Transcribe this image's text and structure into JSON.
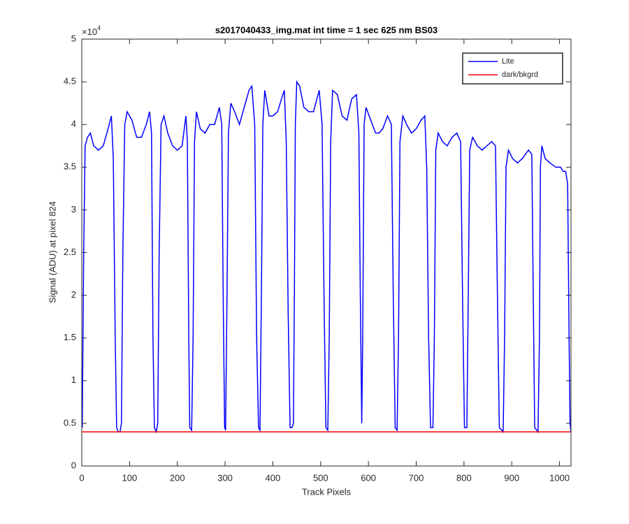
{
  "chart_data": {
    "type": "line",
    "title": "s2017040433_img.mat int time = 1 sec  625 nm BS03",
    "x_label": "Track Pixels",
    "y_label": "Signal (ADU) at pixel 824",
    "y_multiplier_base": "×10",
    "y_multiplier_power": "4",
    "xlim": [
      0,
      1024
    ],
    "xticks": [
      0,
      100,
      200,
      300,
      400,
      500,
      600,
      700,
      800,
      900,
      1000
    ],
    "ylim": [
      0,
      5
    ],
    "yticks": [
      0,
      0.5,
      1,
      1.5,
      2,
      2.5,
      3,
      3.5,
      4,
      4.5,
      5
    ],
    "grid": false,
    "legend": "top-right",
    "series": [
      {
        "name": "Lite",
        "color": "#0000ff",
        "x": [
          1,
          4,
          7,
          12,
          18,
          25,
          35,
          45,
          55,
          62,
          66,
          70,
          73,
          76,
          80,
          83,
          86,
          90,
          95,
          105,
          115,
          125,
          135,
          142,
          146,
          149,
          152,
          156,
          159,
          162,
          166,
          172,
          180,
          190,
          200,
          210,
          218,
          221,
          224,
          226,
          230,
          233,
          236,
          240,
          248,
          258,
          268,
          278,
          288,
          293,
          296,
          299,
          301,
          304,
          307,
          312,
          320,
          330,
          340,
          350,
          356,
          362,
          366,
          370,
          373,
          376,
          379,
          383,
          392,
          400,
          410,
          418,
          424,
          428,
          432,
          436,
          440,
          443,
          445,
          447,
          450,
          456,
          465,
          475,
          485,
          497,
          503,
          507,
          511,
          515,
          518,
          521,
          525,
          535,
          545,
          555,
          565,
          575,
          580,
          583,
          586,
          588,
          591,
          595,
          605,
          615,
          622,
          630,
          640,
          648,
          652,
          656,
          660,
          663,
          666,
          672,
          680,
          690,
          700,
          710,
          718,
          722,
          726,
          730,
          735,
          738,
          741,
          746,
          755,
          765,
          775,
          785,
          793,
          797,
          801,
          806,
          809,
          812,
          818,
          828,
          838,
          848,
          858,
          866,
          870,
          874,
          882,
          885,
          888,
          893,
          902,
          912,
          922,
          935,
          942,
          945,
          948,
          955,
          958,
          960,
          963,
          970,
          980,
          992,
          1002,
          1008,
          1013,
          1017,
          1020,
          1022,
          1024
        ],
        "values": [
          0.45,
          2.5,
          3.75,
          3.85,
          3.9,
          3.75,
          3.7,
          3.75,
          3.95,
          4.1,
          3.6,
          1.5,
          0.45,
          0.4,
          0.4,
          0.5,
          2.5,
          4.0,
          4.15,
          4.05,
          3.85,
          3.85,
          4.0,
          4.15,
          3.9,
          1.5,
          0.45,
          0.4,
          0.5,
          2.5,
          4.0,
          4.1,
          3.9,
          3.75,
          3.7,
          3.75,
          4.1,
          3.8,
          1.5,
          0.45,
          0.42,
          1.5,
          3.8,
          4.15,
          3.95,
          3.9,
          4.0,
          4.0,
          4.2,
          4.0,
          2.0,
          0.45,
          0.42,
          2.0,
          3.9,
          4.25,
          4.15,
          4.0,
          4.2,
          4.4,
          4.45,
          4.0,
          1.5,
          0.45,
          0.42,
          2.0,
          4.0,
          4.4,
          4.1,
          4.1,
          4.15,
          4.3,
          4.4,
          3.8,
          1.8,
          0.45,
          0.45,
          0.5,
          2.0,
          4.0,
          4.5,
          4.45,
          4.2,
          4.15,
          4.15,
          4.4,
          4.0,
          2.0,
          0.45,
          0.42,
          1.5,
          3.8,
          4.4,
          4.35,
          4.1,
          4.05,
          4.3,
          4.35,
          3.9,
          2.0,
          0.5,
          1.5,
          4.0,
          4.2,
          4.05,
          3.9,
          3.9,
          3.95,
          4.1,
          4.0,
          2.0,
          0.45,
          0.42,
          1.5,
          3.8,
          4.1,
          4.0,
          3.9,
          3.95,
          4.05,
          4.1,
          3.5,
          1.5,
          0.45,
          0.45,
          1.5,
          3.7,
          3.9,
          3.8,
          3.75,
          3.85,
          3.9,
          3.8,
          2.0,
          0.45,
          0.45,
          2.0,
          3.7,
          3.85,
          3.75,
          3.7,
          3.75,
          3.8,
          3.75,
          2.0,
          0.45,
          0.4,
          1.5,
          3.5,
          3.7,
          3.6,
          3.55,
          3.6,
          3.7,
          3.65,
          2.0,
          0.45,
          0.4,
          1.5,
          3.5,
          3.75,
          3.6,
          3.55,
          3.5,
          3.5,
          3.45,
          3.45,
          3.3,
          1.5,
          0.5,
          0.4
        ]
      },
      {
        "name": "dark/bkgrd",
        "color": "#ff0000",
        "x": [
          1,
          1024
        ],
        "values": [
          0.4,
          0.4
        ]
      }
    ]
  }
}
